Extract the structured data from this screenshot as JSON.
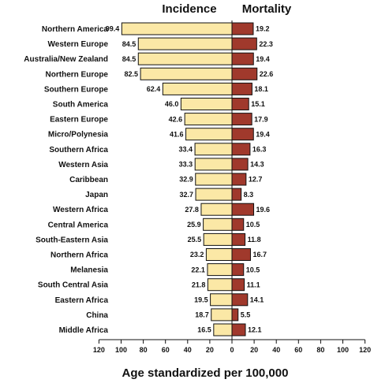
{
  "chart_data": {
    "type": "bar",
    "title": "",
    "xlabel": "Age standardized per 100,000",
    "ylabel": "",
    "xlim": [
      -120,
      120
    ],
    "x_ticks": [
      "120",
      "100",
      "80",
      "60",
      "40",
      "20",
      "0",
      "20",
      "40",
      "60",
      "80",
      "100",
      "120"
    ],
    "grid": false,
    "categories": [
      "Northern America",
      "Western Europe",
      "Australia/New Zealand",
      "Northern Europe",
      "Southern Europe",
      "South America",
      "Eastern Europe",
      "Micro/Polynesia",
      "Southern Africa",
      "Western Asia",
      "Caribbean",
      "Japan",
      "Western Africa",
      "Central America",
      "South-Eastern Asia",
      "Northern Africa",
      "Melanesia",
      "South Central Asia",
      "Eastern Africa",
      "China",
      "Middle Africa"
    ],
    "series": [
      {
        "name": "Incidence",
        "color": "#fbe8a6",
        "values": [
          99.4,
          84.5,
          84.5,
          82.5,
          62.4,
          46.0,
          42.6,
          41.6,
          33.4,
          33.3,
          32.9,
          32.7,
          27.8,
          25.9,
          25.5,
          23.2,
          22.1,
          21.8,
          19.5,
          18.7,
          16.5
        ],
        "labels": [
          "99.4",
          "84.5",
          "84.5",
          "82.5",
          "62.4",
          "46.0",
          "42.6",
          "41.6",
          "33.4",
          "33.3",
          "32.9",
          "32.7",
          "27.8",
          "25.9",
          "25.5",
          "23.2",
          "22.1",
          "21.8",
          "19.5",
          "18.7",
          "16.5"
        ]
      },
      {
        "name": "Mortality",
        "color": "#a0392c",
        "values": [
          19.2,
          22.3,
          19.4,
          22.6,
          18.1,
          15.1,
          17.9,
          19.4,
          16.3,
          14.3,
          12.7,
          8.3,
          19.6,
          10.5,
          11.8,
          16.7,
          10.5,
          11.1,
          14.1,
          5.5,
          12.1
        ],
        "labels": [
          "19.2",
          "22.3",
          "19.4",
          "22.6",
          "18.1",
          "15.1",
          "17.9",
          "19.4",
          "16.3",
          "14.3",
          "12.7",
          "8.3",
          "19.6",
          "10.5",
          "11.8",
          "16.7",
          "10.5",
          "11.1",
          "14.1",
          "5.5",
          "12.1"
        ]
      }
    ]
  }
}
